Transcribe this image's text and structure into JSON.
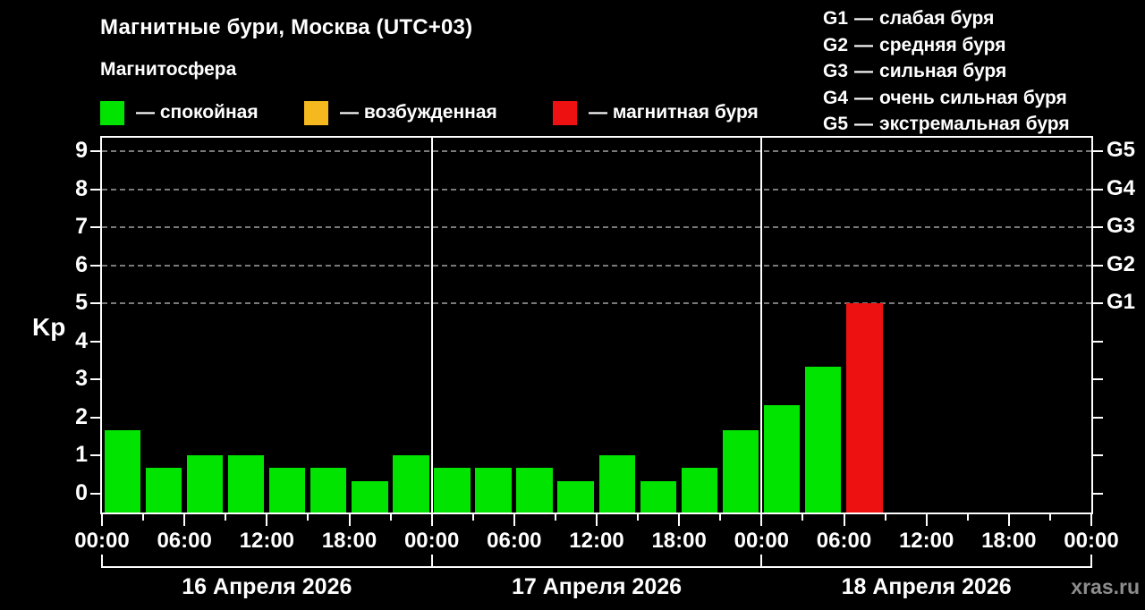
{
  "subtitle": "Магнитосфера",
  "legend": [
    {
      "label": "— спокойная",
      "color": "#00e400",
      "status": "quiet"
    },
    {
      "label": "— возбужденная",
      "color": "#f5b81e",
      "status": "disturbed"
    },
    {
      "label": "— магнитная буря",
      "color": "#ee1111",
      "status": "storm"
    }
  ],
  "g_legend": [
    {
      "code": "G1",
      "label": "слабая буря"
    },
    {
      "code": "G2",
      "label": "средняя буря"
    },
    {
      "code": "G3",
      "label": "сильная буря"
    },
    {
      "code": "G4",
      "label": "очень сильная буря"
    },
    {
      "code": "G5",
      "label": "экстремальная буря"
    }
  ],
  "separators": {
    "dash": "—"
  },
  "watermark": "xras.ru",
  "chart_data": {
    "type": "bar",
    "title": "Магнитные бури, Москва (UTC+03)",
    "ylabel": "Kp",
    "ylim": [
      0,
      9
    ],
    "y_ticks": [
      0,
      1,
      2,
      3,
      4,
      5,
      6,
      7,
      8,
      9
    ],
    "x_tick_labels": [
      "00:00",
      "06:00",
      "12:00",
      "18:00",
      "00:00",
      "06:00",
      "12:00",
      "18:00",
      "00:00",
      "06:00",
      "12:00",
      "18:00",
      "00:00"
    ],
    "hours_per_bar": 3,
    "bars_per_day": 8,
    "grid": "dashed horizontal lines at storm levels Kp 5-9 only",
    "gridlines_kp": [
      5,
      6,
      7,
      8,
      9
    ],
    "right_axis": [
      {
        "kp": 5,
        "label": "G1"
      },
      {
        "kp": 6,
        "label": "G2"
      },
      {
        "kp": 7,
        "label": "G3"
      },
      {
        "kp": 8,
        "label": "G4"
      },
      {
        "kp": 9,
        "label": "G5"
      }
    ],
    "status_colors": {
      "quiet": "#00e400",
      "disturbed": "#f5b81e",
      "storm": "#ee1111"
    },
    "days": [
      {
        "date": "16 Апреля 2026",
        "values": [
          1.67,
          0.67,
          1.0,
          1.0,
          0.67,
          0.67,
          0.33,
          1.0
        ],
        "statuses": [
          "quiet",
          "quiet",
          "quiet",
          "quiet",
          "quiet",
          "quiet",
          "quiet",
          "quiet"
        ]
      },
      {
        "date": "17 Апреля 2026",
        "values": [
          0.67,
          0.67,
          0.67,
          0.33,
          1.0,
          0.33,
          0.67,
          1.67
        ],
        "statuses": [
          "quiet",
          "quiet",
          "quiet",
          "quiet",
          "quiet",
          "quiet",
          "quiet",
          "quiet"
        ]
      },
      {
        "date": "18 Апреля 2026",
        "values": [
          2.33,
          3.33,
          5.0
        ],
        "statuses": [
          "quiet",
          "quiet",
          "storm"
        ]
      }
    ]
  }
}
